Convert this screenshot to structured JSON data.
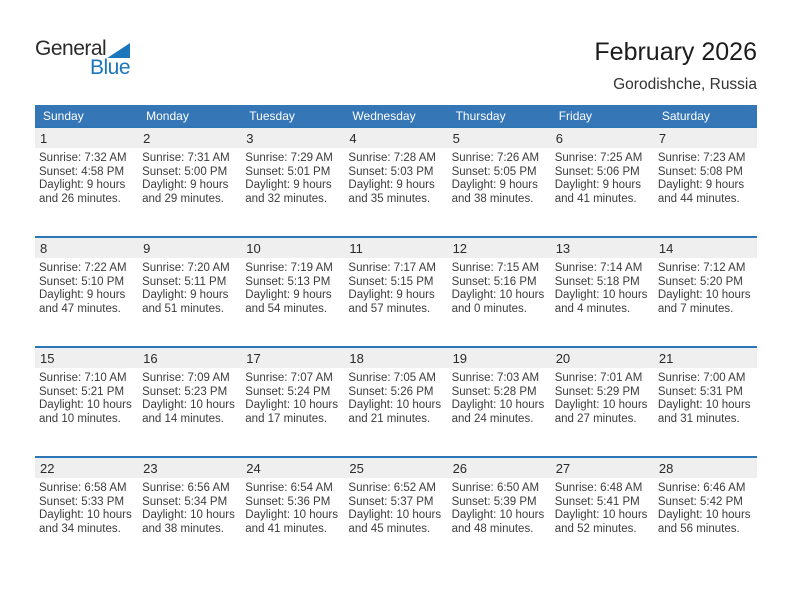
{
  "logo": {
    "text_top": "General",
    "text_bottom": "Blue"
  },
  "header": {
    "title": "February 2026",
    "location": "Gorodishche, Russia"
  },
  "colors": {
    "header_bar_blue": "#3576b6",
    "week_border_blue": "#2e75b5",
    "day_band_gray": "#efefef",
    "logo_blue": "#1b76bc",
    "body_text": "#3c3c3c"
  },
  "weekdays": [
    "Sunday",
    "Monday",
    "Tuesday",
    "Wednesday",
    "Thursday",
    "Friday",
    "Saturday"
  ],
  "weeks": [
    [
      {
        "num": "1",
        "sunrise": "Sunrise: 7:32 AM",
        "sunset": "Sunset: 4:58 PM",
        "daylight1": "Daylight: 9 hours",
        "daylight2": "and 26 minutes."
      },
      {
        "num": "2",
        "sunrise": "Sunrise: 7:31 AM",
        "sunset": "Sunset: 5:00 PM",
        "daylight1": "Daylight: 9 hours",
        "daylight2": "and 29 minutes."
      },
      {
        "num": "3",
        "sunrise": "Sunrise: 7:29 AM",
        "sunset": "Sunset: 5:01 PM",
        "daylight1": "Daylight: 9 hours",
        "daylight2": "and 32 minutes."
      },
      {
        "num": "4",
        "sunrise": "Sunrise: 7:28 AM",
        "sunset": "Sunset: 5:03 PM",
        "daylight1": "Daylight: 9 hours",
        "daylight2": "and 35 minutes."
      },
      {
        "num": "5",
        "sunrise": "Sunrise: 7:26 AM",
        "sunset": "Sunset: 5:05 PM",
        "daylight1": "Daylight: 9 hours",
        "daylight2": "and 38 minutes."
      },
      {
        "num": "6",
        "sunrise": "Sunrise: 7:25 AM",
        "sunset": "Sunset: 5:06 PM",
        "daylight1": "Daylight: 9 hours",
        "daylight2": "and 41 minutes."
      },
      {
        "num": "7",
        "sunrise": "Sunrise: 7:23 AM",
        "sunset": "Sunset: 5:08 PM",
        "daylight1": "Daylight: 9 hours",
        "daylight2": "and 44 minutes."
      }
    ],
    [
      {
        "num": "8",
        "sunrise": "Sunrise: 7:22 AM",
        "sunset": "Sunset: 5:10 PM",
        "daylight1": "Daylight: 9 hours",
        "daylight2": "and 47 minutes."
      },
      {
        "num": "9",
        "sunrise": "Sunrise: 7:20 AM",
        "sunset": "Sunset: 5:11 PM",
        "daylight1": "Daylight: 9 hours",
        "daylight2": "and 51 minutes."
      },
      {
        "num": "10",
        "sunrise": "Sunrise: 7:19 AM",
        "sunset": "Sunset: 5:13 PM",
        "daylight1": "Daylight: 9 hours",
        "daylight2": "and 54 minutes."
      },
      {
        "num": "11",
        "sunrise": "Sunrise: 7:17 AM",
        "sunset": "Sunset: 5:15 PM",
        "daylight1": "Daylight: 9 hours",
        "daylight2": "and 57 minutes."
      },
      {
        "num": "12",
        "sunrise": "Sunrise: 7:15 AM",
        "sunset": "Sunset: 5:16 PM",
        "daylight1": "Daylight: 10 hours",
        "daylight2": "and 0 minutes."
      },
      {
        "num": "13",
        "sunrise": "Sunrise: 7:14 AM",
        "sunset": "Sunset: 5:18 PM",
        "daylight1": "Daylight: 10 hours",
        "daylight2": "and 4 minutes."
      },
      {
        "num": "14",
        "sunrise": "Sunrise: 7:12 AM",
        "sunset": "Sunset: 5:20 PM",
        "daylight1": "Daylight: 10 hours",
        "daylight2": "and 7 minutes."
      }
    ],
    [
      {
        "num": "15",
        "sunrise": "Sunrise: 7:10 AM",
        "sunset": "Sunset: 5:21 PM",
        "daylight1": "Daylight: 10 hours",
        "daylight2": "and 10 minutes."
      },
      {
        "num": "16",
        "sunrise": "Sunrise: 7:09 AM",
        "sunset": "Sunset: 5:23 PM",
        "daylight1": "Daylight: 10 hours",
        "daylight2": "and 14 minutes."
      },
      {
        "num": "17",
        "sunrise": "Sunrise: 7:07 AM",
        "sunset": "Sunset: 5:24 PM",
        "daylight1": "Daylight: 10 hours",
        "daylight2": "and 17 minutes."
      },
      {
        "num": "18",
        "sunrise": "Sunrise: 7:05 AM",
        "sunset": "Sunset: 5:26 PM",
        "daylight1": "Daylight: 10 hours",
        "daylight2": "and 21 minutes."
      },
      {
        "num": "19",
        "sunrise": "Sunrise: 7:03 AM",
        "sunset": "Sunset: 5:28 PM",
        "daylight1": "Daylight: 10 hours",
        "daylight2": "and 24 minutes."
      },
      {
        "num": "20",
        "sunrise": "Sunrise: 7:01 AM",
        "sunset": "Sunset: 5:29 PM",
        "daylight1": "Daylight: 10 hours",
        "daylight2": "and 27 minutes."
      },
      {
        "num": "21",
        "sunrise": "Sunrise: 7:00 AM",
        "sunset": "Sunset: 5:31 PM",
        "daylight1": "Daylight: 10 hours",
        "daylight2": "and 31 minutes."
      }
    ],
    [
      {
        "num": "22",
        "sunrise": "Sunrise: 6:58 AM",
        "sunset": "Sunset: 5:33 PM",
        "daylight1": "Daylight: 10 hours",
        "daylight2": "and 34 minutes."
      },
      {
        "num": "23",
        "sunrise": "Sunrise: 6:56 AM",
        "sunset": "Sunset: 5:34 PM",
        "daylight1": "Daylight: 10 hours",
        "daylight2": "and 38 minutes."
      },
      {
        "num": "24",
        "sunrise": "Sunrise: 6:54 AM",
        "sunset": "Sunset: 5:36 PM",
        "daylight1": "Daylight: 10 hours",
        "daylight2": "and 41 minutes."
      },
      {
        "num": "25",
        "sunrise": "Sunrise: 6:52 AM",
        "sunset": "Sunset: 5:37 PM",
        "daylight1": "Daylight: 10 hours",
        "daylight2": "and 45 minutes."
      },
      {
        "num": "26",
        "sunrise": "Sunrise: 6:50 AM",
        "sunset": "Sunset: 5:39 PM",
        "daylight1": "Daylight: 10 hours",
        "daylight2": "and 48 minutes."
      },
      {
        "num": "27",
        "sunrise": "Sunrise: 6:48 AM",
        "sunset": "Sunset: 5:41 PM",
        "daylight1": "Daylight: 10 hours",
        "daylight2": "and 52 minutes."
      },
      {
        "num": "28",
        "sunrise": "Sunrise: 6:46 AM",
        "sunset": "Sunset: 5:42 PM",
        "daylight1": "Daylight: 10 hours",
        "daylight2": "and 56 minutes."
      }
    ]
  ]
}
